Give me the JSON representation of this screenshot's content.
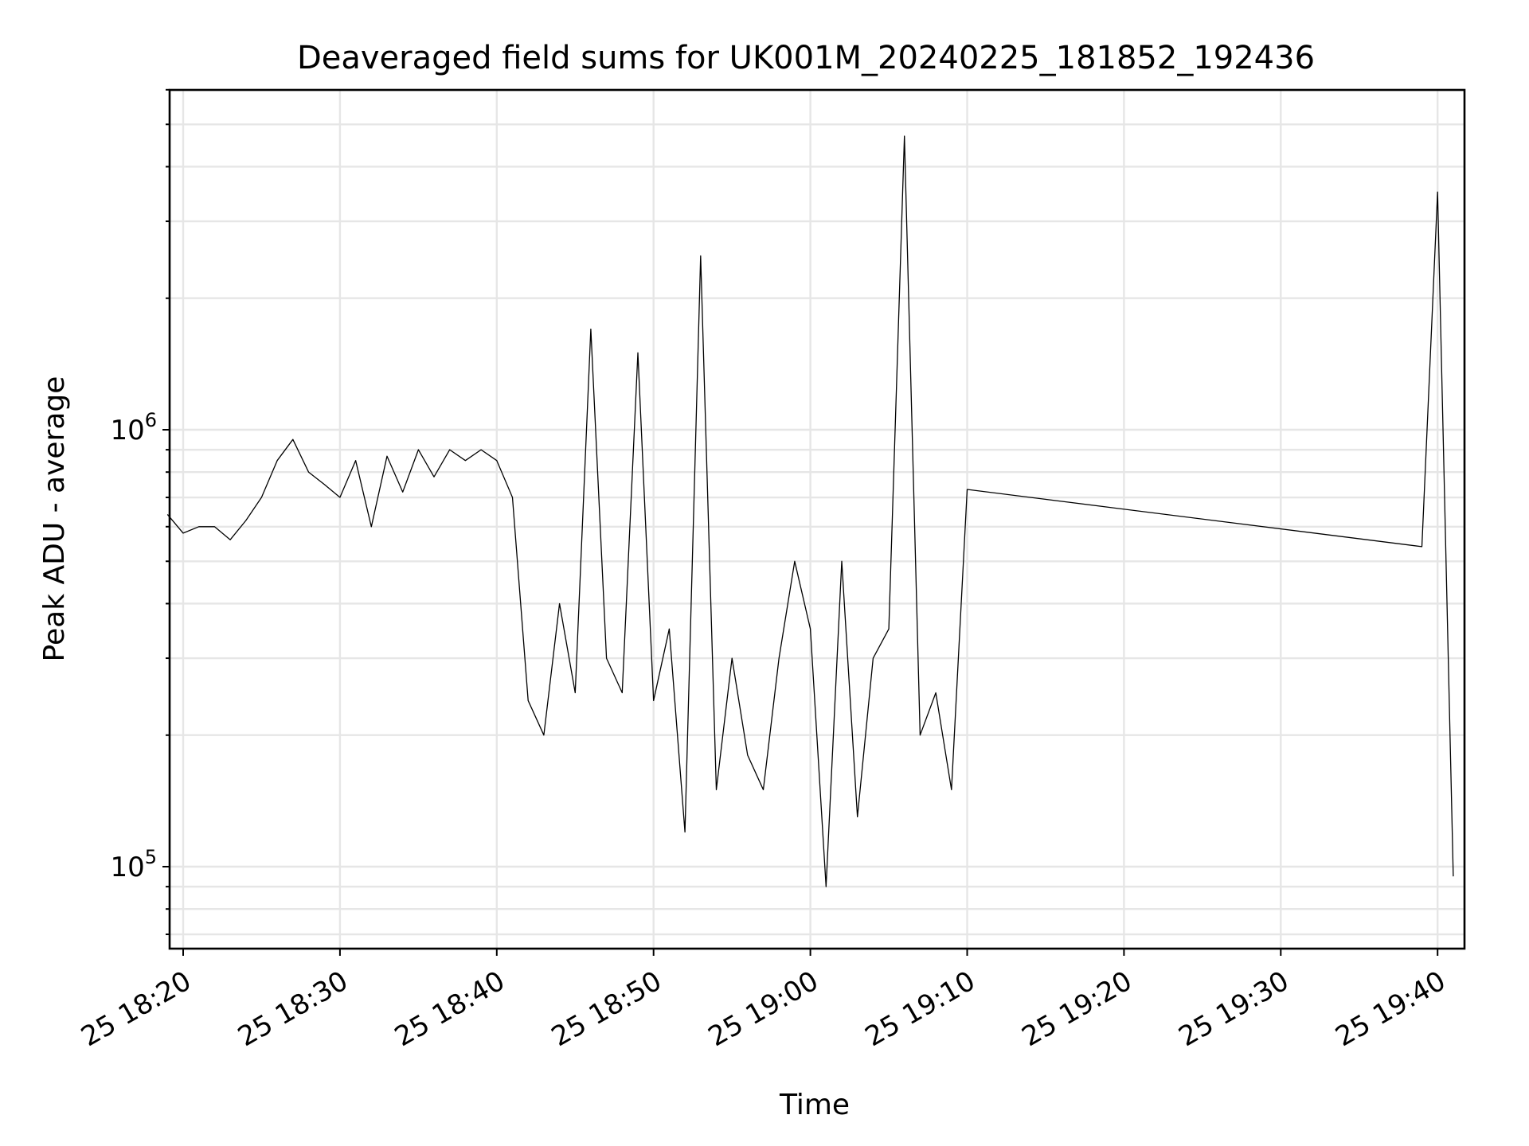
{
  "chart_data": {
    "type": "line",
    "title": "Deaveraged field sums for UK001M_20240225_181852_192436",
    "xlabel": "Time",
    "ylabel": "Peak ADU - average",
    "x_unit": "minutes (25 Feb 2024)",
    "xlim": [
      "25 18:19",
      "25 19:42"
    ],
    "ylim": [
      62000,
      6000000
    ],
    "yscale": "log",
    "grid": true,
    "line_color": "#000000",
    "x_ticks": [
      {
        "value": "2024-02-25 18:20",
        "label": "25 18:20"
      },
      {
        "value": "2024-02-25 18:30",
        "label": "25 18:30"
      },
      {
        "value": "2024-02-25 18:40",
        "label": "25 18:40"
      },
      {
        "value": "2024-02-25 18:50",
        "label": "25 18:50"
      },
      {
        "value": "2024-02-25 19:00",
        "label": "25 19:00"
      },
      {
        "value": "2024-02-25 19:10",
        "label": "25 19:10"
      },
      {
        "value": "2024-02-25 19:20",
        "label": "25 19:20"
      },
      {
        "value": "2024-02-25 19:30",
        "label": "25 19:30"
      },
      {
        "value": "2024-02-25 19:40",
        "label": "25 19:40"
      }
    ],
    "y_ticks": [
      {
        "value": 100000,
        "base": "10",
        "exp": "5"
      },
      {
        "value": 1000000,
        "base": "10",
        "exp": "6"
      }
    ],
    "series": [
      {
        "x": [
          "18:19",
          "18:20",
          "18:21",
          "18:22",
          "18:23",
          "18:24",
          "18:25",
          "18:26",
          "18:27",
          "18:28",
          "18:29",
          "18:30",
          "18:31",
          "18:32",
          "18:33",
          "18:34",
          "18:35",
          "18:36",
          "18:37",
          "18:38",
          "18:39",
          "18:40",
          "18:41",
          "18:42",
          "18:43",
          "18:44",
          "18:45",
          "18:46",
          "18:47",
          "18:48",
          "18:49",
          "18:50",
          "18:51",
          "18:52",
          "18:53",
          "18:54",
          "18:55",
          "18:56",
          "18:57",
          "18:58",
          "18:59",
          "19:00",
          "19:01",
          "19:02",
          "19:03",
          "19:04",
          "19:05",
          "19:06",
          "19:07",
          "19:08",
          "19:09",
          "19:10",
          "19:39",
          "19:40",
          "19:41"
        ],
        "y": [
          640000,
          580000,
          600000,
          600000,
          560000,
          620000,
          700000,
          850000,
          950000,
          800000,
          750000,
          700000,
          850000,
          600000,
          870000,
          720000,
          900000,
          780000,
          900000,
          850000,
          900000,
          850000,
          700000,
          240000,
          200000,
          400000,
          250000,
          1700000,
          300000,
          250000,
          1500000,
          240000,
          350000,
          120000,
          2500000,
          150000,
          300000,
          180000,
          150000,
          300000,
          500000,
          350000,
          90000,
          500000,
          130000,
          300000,
          350000,
          4700000,
          200000,
          250000,
          150000,
          730000,
          540000,
          3500000,
          95000
        ]
      }
    ]
  }
}
